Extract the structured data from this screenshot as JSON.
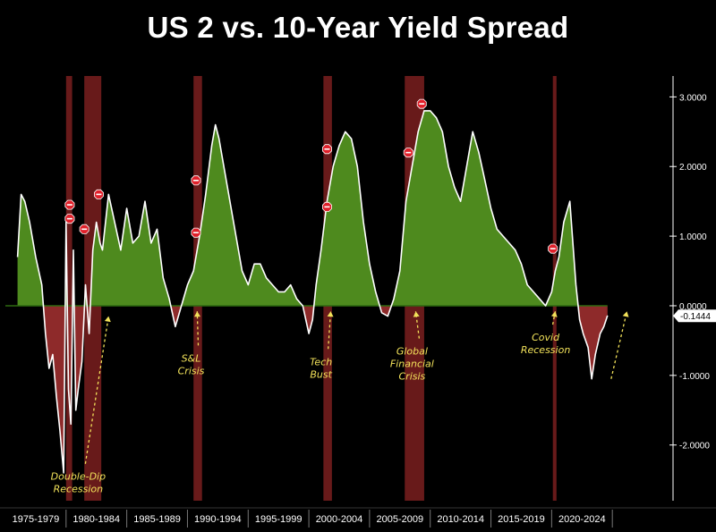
{
  "chart_data": {
    "type": "area",
    "title": "US 2 vs. 10-Year Yield Spread",
    "xlabel": "",
    "ylabel": "",
    "ylim": [
      -2.8,
      3.3
    ],
    "y_ticks": [
      3.0,
      2.0,
      1.0,
      0.0,
      -1.0,
      -2.0
    ],
    "y_tick_labels": [
      "3.0000",
      "2.0000",
      "1.0000",
      "0.0000",
      "-1.0000",
      "-2.0000"
    ],
    "x_range": [
      1975,
      2030
    ],
    "x_tick_labels": [
      "1975-1979",
      "1980-1984",
      "1985-1989",
      "1990-1994",
      "1995-1999",
      "2000-2004",
      "2005-2009",
      "2010-2014",
      "2015-2019",
      "2020-2024"
    ],
    "last_value": -0.1444,
    "last_value_label": "-0.1444",
    "positive_color": "#4e8a1e",
    "negative_color": "#8e2a2a",
    "line_color": "#ffffff",
    "recession_color": "#7a1e1e",
    "annotation_color": "#f2e25a",
    "series": [
      {
        "x": [
          1976.0,
          1976.3,
          1976.6,
          1977.0,
          1977.5,
          1978.0,
          1978.3,
          1978.6,
          1978.9,
          1979.2,
          1979.5,
          1979.8,
          1980.0,
          1980.2,
          1980.4,
          1980.6,
          1980.8,
          1981.0,
          1981.3,
          1981.6,
          1981.9,
          1982.2,
          1982.5,
          1982.8,
          1983.0,
          1983.5,
          1984.0,
          1984.5,
          1985.0,
          1985.5,
          1986.0,
          1986.5,
          1987.0,
          1987.5,
          1988.0,
          1988.5,
          1989.0,
          1989.5,
          1990.0,
          1990.5,
          1991.0,
          1991.5,
          1992.0,
          1992.3,
          1992.6,
          1993.0,
          1993.5,
          1994.0,
          1994.5,
          1995.0,
          1995.5,
          1996.0,
          1996.5,
          1997.0,
          1997.5,
          1998.0,
          1998.5,
          1999.0,
          1999.5,
          2000.0,
          2000.3,
          2000.6,
          2001.0,
          2001.5,
          2002.0,
          2002.5,
          2003.0,
          2003.5,
          2004.0,
          2004.5,
          2005.0,
          2005.5,
          2006.0,
          2006.5,
          2007.0,
          2007.5,
          2008.0,
          2008.5,
          2009.0,
          2009.5,
          2010.0,
          2010.5,
          2011.0,
          2011.5,
          2012.0,
          2012.5,
          2013.0,
          2013.5,
          2014.0,
          2014.5,
          2015.0,
          2015.5,
          2016.0,
          2016.5,
          2017.0,
          2017.5,
          2018.0,
          2018.5,
          2019.0,
          2019.5,
          2020.0,
          2020.3,
          2020.6,
          2021.0,
          2021.5,
          2022.0,
          2022.3,
          2022.6,
          2023.0,
          2023.3,
          2023.6,
          2024.0,
          2024.3,
          2024.6
        ],
        "y": [
          0.7,
          1.6,
          1.5,
          1.2,
          0.7,
          0.3,
          -0.4,
          -0.9,
          -0.7,
          -1.3,
          -1.8,
          -2.4,
          1.2,
          -1.2,
          -1.7,
          0.8,
          -1.5,
          -1.2,
          -0.8,
          0.3,
          -0.4,
          0.8,
          1.2,
          0.9,
          0.8,
          1.6,
          1.2,
          0.8,
          1.4,
          0.9,
          1.0,
          1.5,
          0.9,
          1.1,
          0.4,
          0.1,
          -0.3,
          0.0,
          0.3,
          0.5,
          1.0,
          1.6,
          2.3,
          2.6,
          2.4,
          2.0,
          1.5,
          1.0,
          0.5,
          0.3,
          0.6,
          0.6,
          0.4,
          0.3,
          0.2,
          0.2,
          0.3,
          0.1,
          0.0,
          -0.4,
          -0.2,
          0.3,
          0.8,
          1.5,
          2.0,
          2.3,
          2.5,
          2.4,
          2.0,
          1.2,
          0.6,
          0.2,
          -0.1,
          -0.15,
          0.1,
          0.5,
          1.5,
          2.0,
          2.5,
          2.8,
          2.8,
          2.7,
          2.5,
          2.0,
          1.7,
          1.5,
          2.0,
          2.5,
          2.2,
          1.8,
          1.4,
          1.1,
          1.0,
          0.9,
          0.8,
          0.6,
          0.3,
          0.2,
          0.1,
          0.0,
          0.2,
          0.5,
          0.7,
          1.2,
          1.5,
          0.3,
          -0.2,
          -0.4,
          -0.6,
          -1.05,
          -0.7,
          -0.4,
          -0.3,
          -0.14
        ]
      }
    ],
    "recession_bands": [
      {
        "start": 1980.0,
        "end": 1980.5
      },
      {
        "start": 1981.5,
        "end": 1982.9
      },
      {
        "start": 1990.5,
        "end": 1991.2
      },
      {
        "start": 2001.2,
        "end": 2001.9
      },
      {
        "start": 2007.9,
        "end": 2009.5
      },
      {
        "start": 2020.1,
        "end": 2020.4
      }
    ],
    "inversion_markers": [
      {
        "x": 1980.3,
        "y": 1.45
      },
      {
        "x": 1980.3,
        "y": 1.25
      },
      {
        "x": 1981.5,
        "y": 1.1
      },
      {
        "x": 1982.7,
        "y": 1.6
      },
      {
        "x": 1990.7,
        "y": 1.8
      },
      {
        "x": 1990.7,
        "y": 1.05
      },
      {
        "x": 2001.5,
        "y": 2.25
      },
      {
        "x": 2001.5,
        "y": 1.42
      },
      {
        "x": 2008.2,
        "y": 2.2
      },
      {
        "x": 2009.3,
        "y": 2.9
      },
      {
        "x": 2020.1,
        "y": 0.82
      }
    ],
    "annotations": [
      {
        "lines": [
          "Double-Dip",
          "Recession"
        ],
        "anchor": {
          "x": 1981.0,
          "y": -2.45
        },
        "arrow_to": {
          "x": 1983.5,
          "y": -0.15
        }
      },
      {
        "lines": [
          "S&L",
          "Crisis"
        ],
        "anchor": {
          "x": 1990.3,
          "y": -0.75
        },
        "arrow_to": {
          "x": 1990.8,
          "y": -0.08
        }
      },
      {
        "lines": [
          "Tech",
          "Bust"
        ],
        "anchor": {
          "x": 2001.0,
          "y": -0.8
        },
        "arrow_to": {
          "x": 2001.8,
          "y": -0.08
        }
      },
      {
        "lines": [
          "Global",
          "Financial",
          "Crisis"
        ],
        "anchor": {
          "x": 2008.5,
          "y": -0.65
        },
        "arrow_to": {
          "x": 2008.8,
          "y": -0.08
        }
      },
      {
        "lines": [
          "Covid",
          "Recession"
        ],
        "anchor": {
          "x": 2019.5,
          "y": -0.45
        },
        "arrow_to": {
          "x": 2020.3,
          "y": -0.08
        }
      },
      {
        "lines": [],
        "anchor": {
          "x": 2024.9,
          "y": -1.05
        },
        "arrow_to": {
          "x": 2026.2,
          "y": -0.08
        }
      }
    ]
  }
}
